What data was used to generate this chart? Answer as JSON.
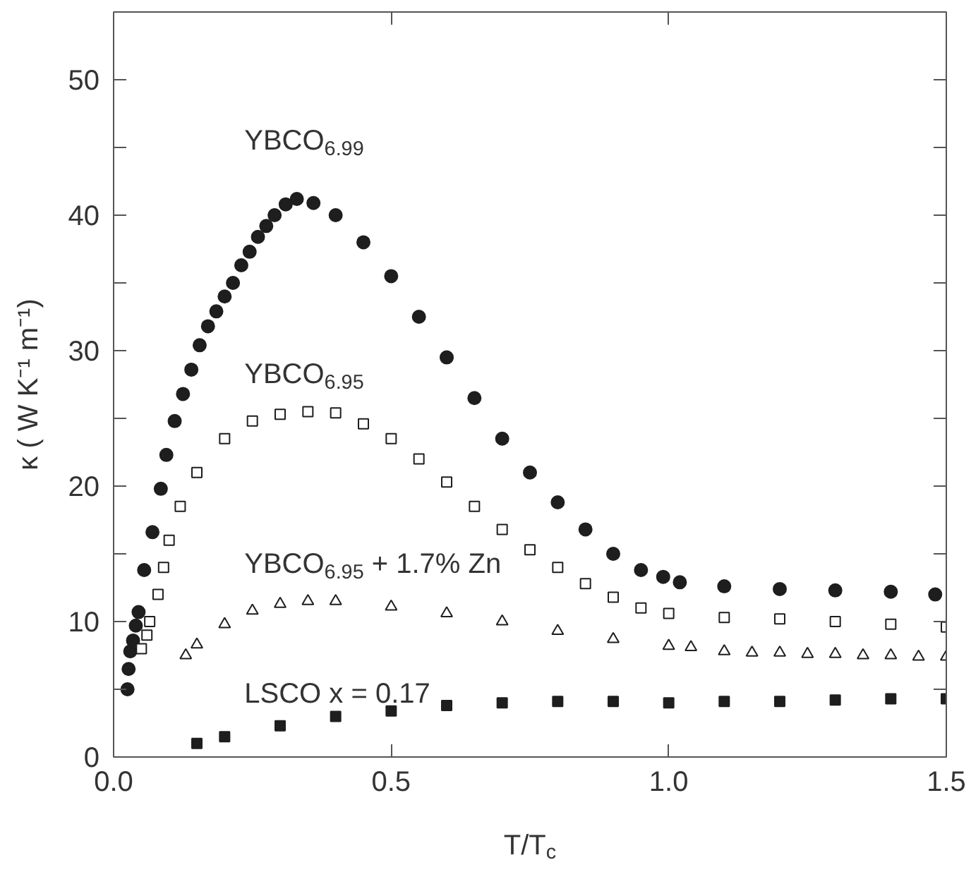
{
  "chart_data": {
    "type": "scatter",
    "xlabel": "T/T$_{c}$",
    "ylabel": "κ ( W K⁻¹ m⁻¹)",
    "xlim": [
      0,
      1.5
    ],
    "ylim": [
      0,
      55
    ],
    "xticks": [
      {
        "value": 0,
        "label": "0.0"
      },
      0.5,
      {
        "value": 1,
        "label": "1.0"
      },
      1.5
    ],
    "yticks": [
      0,
      {
        "value": 5,
        "label": null
      },
      10,
      {
        "value": 15,
        "label": null
      },
      20,
      {
        "value": 25,
        "label": null
      },
      30,
      {
        "value": 35,
        "label": null
      },
      40,
      {
        "value": 45,
        "label": null
      },
      50,
      {
        "value": 55,
        "label": null
      }
    ],
    "grid": false,
    "series": [
      {
        "name": "YBCO$_{6.99}$",
        "color": "#1e1e1e",
        "marker": "circle",
        "x": [
          0.025,
          0.027,
          0.03,
          0.035,
          0.04,
          0.045,
          0.055,
          0.07,
          0.085,
          0.095,
          0.11,
          0.125,
          0.14,
          0.155,
          0.17,
          0.185,
          0.2,
          0.215,
          0.23,
          0.245,
          0.26,
          0.275,
          0.29,
          0.31,
          0.33,
          0.36,
          0.4,
          0.45,
          0.5,
          0.55,
          0.6,
          0.65,
          0.7,
          0.75,
          0.8,
          0.85,
          0.9,
          0.95,
          0.99,
          1.02,
          1.1,
          1.2,
          1.3,
          1.4,
          1.48
        ],
        "values": [
          5.0,
          6.5,
          7.8,
          8.6,
          9.7,
          10.7,
          13.8,
          16.6,
          19.8,
          22.3,
          24.8,
          26.8,
          28.6,
          30.4,
          31.8,
          32.9,
          34.0,
          35.0,
          36.3,
          37.3,
          38.4,
          39.2,
          40.0,
          40.8,
          41.2,
          40.9,
          40.0,
          38.0,
          35.5,
          32.5,
          29.5,
          26.5,
          23.5,
          21.0,
          18.8,
          16.8,
          15.0,
          13.8,
          13.3,
          12.9,
          12.6,
          12.4,
          12.3,
          12.2,
          12.0
        ]
      },
      {
        "name": "YBCO$_{6.95}$",
        "color": "#1e1e1e",
        "marker": "square",
        "x": [
          0.05,
          0.06,
          0.065,
          0.08,
          0.09,
          0.1,
          0.12,
          0.15,
          0.2,
          0.25,
          0.3,
          0.35,
          0.4,
          0.45,
          0.5,
          0.55,
          0.6,
          0.65,
          0.7,
          0.75,
          0.8,
          0.85,
          0.9,
          0.95,
          1.0,
          1.1,
          1.2,
          1.3,
          1.4,
          1.5
        ],
        "values": [
          8.0,
          9.0,
          10.0,
          12.0,
          14.0,
          16.0,
          18.5,
          21.0,
          23.5,
          24.8,
          25.3,
          25.5,
          25.4,
          24.6,
          23.5,
          22.0,
          20.3,
          18.5,
          16.8,
          15.3,
          14.0,
          12.8,
          11.8,
          11.0,
          10.6,
          10.3,
          10.2,
          10.0,
          9.8,
          9.6
        ]
      },
      {
        "name": "YBCO$_{6.95}$ + 1.7% Zn",
        "color": "#1e1e1e",
        "marker": "triangle",
        "x": [
          0.13,
          0.15,
          0.2,
          0.25,
          0.3,
          0.35,
          0.4,
          0.5,
          0.6,
          0.7,
          0.8,
          0.9,
          1.0,
          1.04,
          1.1,
          1.15,
          1.2,
          1.25,
          1.3,
          1.35,
          1.4,
          1.45,
          1.5
        ],
        "values": [
          7.5,
          8.3,
          9.8,
          10.8,
          11.3,
          11.5,
          11.5,
          11.1,
          10.6,
          10.0,
          9.3,
          8.7,
          8.2,
          8.1,
          7.8,
          7.7,
          7.7,
          7.6,
          7.6,
          7.5,
          7.5,
          7.4,
          7.4
        ]
      },
      {
        "name": "LSCO x = 0.17",
        "color": "#1e1e1e",
        "marker": "square",
        "x": [
          0.15,
          0.2,
          0.3,
          0.4,
          0.5,
          0.6,
          0.7,
          0.8,
          0.9,
          1.0,
          1.1,
          1.2,
          1.3,
          1.4,
          1.5
        ],
        "values": [
          1.0,
          1.5,
          2.3,
          3.0,
          3.4,
          3.8,
          4.0,
          4.1,
          4.1,
          4.0,
          4.1,
          4.1,
          4.2,
          4.3,
          4.3
        ]
      }
    ]
  }
}
